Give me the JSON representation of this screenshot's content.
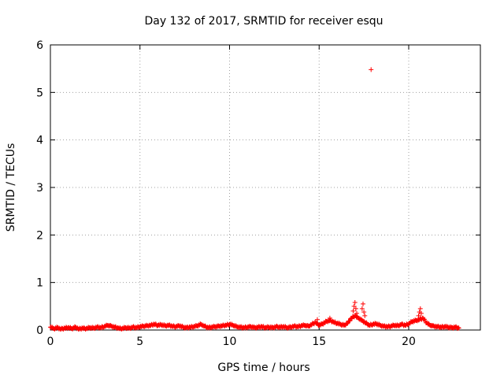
{
  "chart_data": {
    "type": "scatter",
    "title": "Day 132 of 2017, SRMTID for receiver esqu",
    "xlabel": "GPS time / hours",
    "ylabel": "SRMTID / TECUs",
    "xlim": [
      0,
      24
    ],
    "ylim": [
      0,
      6
    ],
    "xticks": [
      0,
      5,
      10,
      15,
      20
    ],
    "yticks": [
      0,
      1,
      2,
      3,
      4,
      5,
      6
    ],
    "grid": true,
    "series": [
      {
        "name": "SRMTID",
        "color": "#ff0000",
        "marker": "plus",
        "baseline_points": [
          [
            0.0,
            0.06
          ],
          [
            0.2,
            0.03
          ],
          [
            0.4,
            0.05
          ],
          [
            0.6,
            0.02
          ],
          [
            0.8,
            0.04
          ],
          [
            1.0,
            0.05
          ],
          [
            1.2,
            0.03
          ],
          [
            1.4,
            0.06
          ],
          [
            1.6,
            0.02
          ],
          [
            1.8,
            0.04
          ],
          [
            2.0,
            0.03
          ],
          [
            2.2,
            0.05
          ],
          [
            2.4,
            0.04
          ],
          [
            2.6,
            0.06
          ],
          [
            2.8,
            0.05
          ],
          [
            3.0,
            0.07
          ],
          [
            3.2,
            0.1
          ],
          [
            3.4,
            0.08
          ],
          [
            3.6,
            0.06
          ],
          [
            3.8,
            0.04
          ],
          [
            4.0,
            0.03
          ],
          [
            4.2,
            0.05
          ],
          [
            4.4,
            0.04
          ],
          [
            4.6,
            0.06
          ],
          [
            4.8,
            0.05
          ],
          [
            5.0,
            0.07
          ],
          [
            5.2,
            0.08
          ],
          [
            5.4,
            0.09
          ],
          [
            5.6,
            0.1
          ],
          [
            5.8,
            0.12
          ],
          [
            6.0,
            0.1
          ],
          [
            6.2,
            0.11
          ],
          [
            6.4,
            0.09
          ],
          [
            6.6,
            0.1
          ],
          [
            6.8,
            0.08
          ],
          [
            7.0,
            0.07
          ],
          [
            7.2,
            0.09
          ],
          [
            7.4,
            0.06
          ],
          [
            7.6,
            0.05
          ],
          [
            7.8,
            0.06
          ],
          [
            8.0,
            0.07
          ],
          [
            8.2,
            0.09
          ],
          [
            8.4,
            0.12
          ],
          [
            8.6,
            0.08
          ],
          [
            8.8,
            0.05
          ],
          [
            9.0,
            0.06
          ],
          [
            9.2,
            0.07
          ],
          [
            9.4,
            0.08
          ],
          [
            9.6,
            0.09
          ],
          [
            9.8,
            0.1
          ],
          [
            10.0,
            0.12
          ],
          [
            10.2,
            0.1
          ],
          [
            10.4,
            0.07
          ],
          [
            10.6,
            0.06
          ],
          [
            10.8,
            0.05
          ],
          [
            11.0,
            0.06
          ],
          [
            11.2,
            0.07
          ],
          [
            11.4,
            0.05
          ],
          [
            11.6,
            0.06
          ],
          [
            11.8,
            0.07
          ],
          [
            12.0,
            0.05
          ],
          [
            12.2,
            0.06
          ],
          [
            12.4,
            0.05
          ],
          [
            12.6,
            0.07
          ],
          [
            12.8,
            0.06
          ],
          [
            13.0,
            0.07
          ],
          [
            13.2,
            0.05
          ],
          [
            13.4,
            0.06
          ],
          [
            13.6,
            0.08
          ],
          [
            13.8,
            0.07
          ],
          [
            14.0,
            0.09
          ],
          [
            14.2,
            0.1
          ],
          [
            14.4,
            0.08
          ],
          [
            14.6,
            0.12
          ],
          [
            14.8,
            0.16
          ],
          [
            15.0,
            0.1
          ],
          [
            15.2,
            0.13
          ],
          [
            15.4,
            0.18
          ],
          [
            15.6,
            0.2
          ],
          [
            15.8,
            0.17
          ],
          [
            16.0,
            0.14
          ],
          [
            16.2,
            0.12
          ],
          [
            16.4,
            0.1
          ],
          [
            16.6,
            0.15
          ],
          [
            16.8,
            0.25
          ],
          [
            17.0,
            0.3
          ],
          [
            17.2,
            0.25
          ],
          [
            17.4,
            0.2
          ],
          [
            17.6,
            0.15
          ],
          [
            17.8,
            0.1
          ],
          [
            18.0,
            0.12
          ],
          [
            18.2,
            0.13
          ],
          [
            18.4,
            0.1
          ],
          [
            18.6,
            0.08
          ],
          [
            18.8,
            0.07
          ],
          [
            19.0,
            0.08
          ],
          [
            19.2,
            0.1
          ],
          [
            19.4,
            0.09
          ],
          [
            19.6,
            0.12
          ],
          [
            19.8,
            0.1
          ],
          [
            20.0,
            0.13
          ],
          [
            20.2,
            0.18
          ],
          [
            20.4,
            0.2
          ],
          [
            20.6,
            0.22
          ],
          [
            20.8,
            0.25
          ],
          [
            21.0,
            0.15
          ],
          [
            21.2,
            0.1
          ],
          [
            21.4,
            0.08
          ],
          [
            21.6,
            0.07
          ],
          [
            21.8,
            0.06
          ],
          [
            22.0,
            0.07
          ],
          [
            22.2,
            0.06
          ],
          [
            22.4,
            0.05
          ],
          [
            22.6,
            0.06
          ],
          [
            22.8,
            0.04
          ]
        ],
        "spike_points": [
          [
            14.9,
            0.22
          ],
          [
            15.6,
            0.25
          ],
          [
            16.9,
            0.4
          ],
          [
            16.95,
            0.5
          ],
          [
            17.0,
            0.58
          ],
          [
            17.05,
            0.45
          ],
          [
            17.1,
            0.35
          ],
          [
            17.4,
            0.45
          ],
          [
            17.45,
            0.55
          ],
          [
            17.5,
            0.38
          ],
          [
            17.55,
            0.3
          ],
          [
            20.55,
            0.3
          ],
          [
            20.6,
            0.38
          ],
          [
            20.65,
            0.45
          ],
          [
            20.7,
            0.35
          ]
        ],
        "outlier_points": [
          [
            17.9,
            5.48
          ]
        ]
      }
    ]
  }
}
